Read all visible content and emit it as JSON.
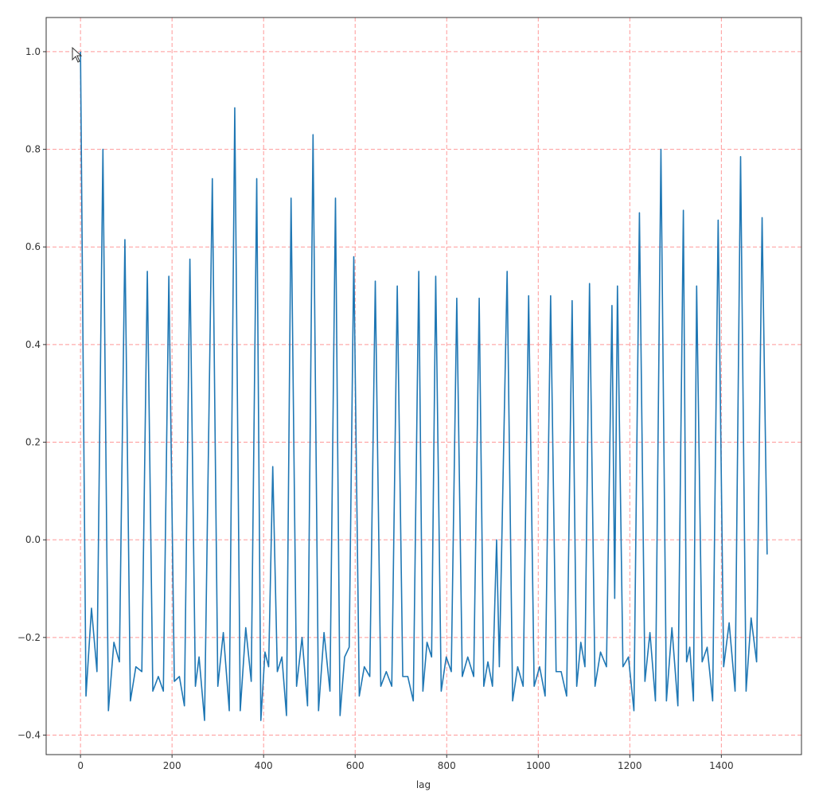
{
  "chart_data": {
    "type": "line",
    "xlabel": "lag",
    "x": [
      0,
      12,
      24,
      36,
      49,
      61,
      73,
      85,
      97,
      109,
      121,
      134,
      146,
      158,
      170,
      181,
      193,
      205,
      216,
      227,
      239,
      251,
      259,
      271,
      288,
      300,
      312,
      325,
      337,
      349,
      361,
      373,
      385,
      394,
      403,
      411,
      420,
      430,
      440,
      450,
      460,
      472,
      484,
      496,
      508,
      520,
      532,
      545,
      557,
      567,
      577,
      587,
      597,
      609,
      620,
      632,
      644,
      656,
      668,
      680,
      692,
      704,
      715,
      727,
      739,
      748,
      757,
      767,
      776,
      788,
      799,
      810,
      822,
      834,
      846,
      859,
      871,
      881,
      890,
      900,
      909,
      915,
      932,
      944,
      955,
      967,
      979,
      991,
      1003,
      1015,
      1027,
      1039,
      1050,
      1062,
      1074,
      1084,
      1093,
      1102,
      1112,
      1124,
      1136,
      1149,
      1161,
      1167,
      1173,
      1185,
      1197,
      1209,
      1221,
      1233,
      1244,
      1256,
      1268,
      1280,
      1292,
      1305,
      1317,
      1324,
      1331,
      1339,
      1346,
      1358,
      1369,
      1381,
      1393,
      1405,
      1417,
      1430,
      1442,
      1454,
      1465,
      1477,
      1489,
      1500
    ],
    "series": [
      {
        "color": "#1f77b4",
        "values": [
          1.0,
          -0.32,
          -0.14,
          -0.27,
          0.8,
          -0.35,
          -0.21,
          -0.25,
          0.615,
          -0.33,
          -0.26,
          -0.27,
          0.55,
          -0.31,
          -0.28,
          -0.31,
          0.54,
          -0.29,
          -0.28,
          -0.34,
          0.575,
          -0.3,
          -0.24,
          -0.37,
          0.74,
          -0.3,
          -0.19,
          -0.35,
          0.885,
          -0.35,
          -0.18,
          -0.29,
          0.74,
          -0.37,
          -0.23,
          -0.26,
          0.15,
          -0.27,
          -0.24,
          -0.36,
          0.7,
          -0.3,
          -0.2,
          -0.34,
          0.83,
          -0.35,
          -0.19,
          -0.31,
          0.7,
          -0.36,
          -0.24,
          -0.22,
          0.58,
          -0.32,
          -0.26,
          -0.28,
          0.53,
          -0.3,
          -0.27,
          -0.3,
          0.52,
          -0.28,
          -0.28,
          -0.33,
          0.55,
          -0.31,
          -0.21,
          -0.24,
          0.54,
          -0.31,
          -0.24,
          -0.27,
          0.495,
          -0.28,
          -0.24,
          -0.28,
          0.495,
          -0.3,
          -0.25,
          -0.3,
          0.0,
          -0.26,
          0.55,
          -0.33,
          -0.26,
          -0.3,
          0.5,
          -0.3,
          -0.26,
          -0.32,
          0.5,
          -0.27,
          -0.27,
          -0.32,
          0.49,
          -0.3,
          -0.21,
          -0.26,
          0.525,
          -0.3,
          -0.23,
          -0.26,
          0.48,
          -0.12,
          0.52,
          -0.26,
          -0.24,
          -0.35,
          0.67,
          -0.29,
          -0.19,
          -0.33,
          0.8,
          -0.33,
          -0.18,
          -0.34,
          0.675,
          -0.25,
          -0.22,
          -0.33,
          0.52,
          -0.25,
          -0.22,
          -0.33,
          0.655,
          -0.26,
          -0.17,
          -0.31,
          0.785,
          -0.31,
          -0.16,
          -0.25,
          0.66,
          -0.03
        ]
      }
    ],
    "xlim": [
      -75,
      1575
    ],
    "ylim": [
      -0.44,
      1.07
    ],
    "xticks": [
      0,
      200,
      400,
      600,
      800,
      1000,
      1200,
      1400
    ],
    "yticks": [
      {
        "value": -0.4,
        "label": "−0.4"
      },
      {
        "value": -0.2,
        "label": "−0.2"
      },
      {
        "value": 0,
        "label": "0.0"
      },
      0.2,
      0.4,
      0.6,
      0.8,
      {
        "value": 1,
        "label": "1.0"
      }
    ],
    "grid": true,
    "grid_color": "#ff9999"
  }
}
